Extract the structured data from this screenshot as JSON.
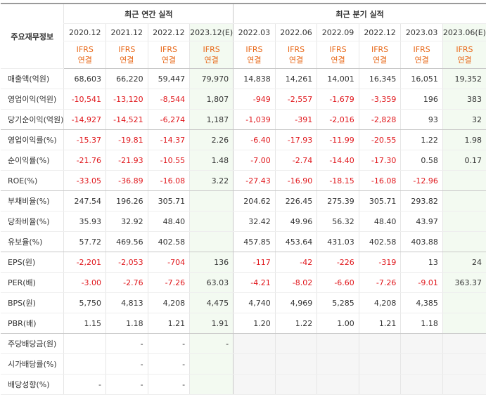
{
  "header": {
    "label": "주요재무정보",
    "groups": [
      {
        "title": "최근 연간 실적",
        "span": 4
      },
      {
        "title": "최근 분기 실적",
        "span": 6
      }
    ]
  },
  "columns": [
    {
      "period": "2020.12",
      "standard": "IFRS",
      "basis": "연결",
      "estimate": false
    },
    {
      "period": "2021.12",
      "standard": "IFRS",
      "basis": "연결",
      "estimate": false
    },
    {
      "period": "2022.12",
      "standard": "IFRS",
      "basis": "연결",
      "estimate": false
    },
    {
      "period": "2023.12(E)",
      "standard": "IFRS",
      "basis": "연결",
      "estimate": true
    },
    {
      "period": "2022.03",
      "standard": "IFRS",
      "basis": "연결",
      "estimate": false
    },
    {
      "period": "2022.06",
      "standard": "IFRS",
      "basis": "연결",
      "estimate": false
    },
    {
      "period": "2022.09",
      "standard": "IFRS",
      "basis": "연결",
      "estimate": false
    },
    {
      "period": "2022.12",
      "standard": "IFRS",
      "basis": "연결",
      "estimate": false
    },
    {
      "period": "2023.03",
      "standard": "IFRS",
      "basis": "연결",
      "estimate": false
    },
    {
      "period": "2023.06(E)",
      "standard": "IFRS",
      "basis": "연결",
      "estimate": true
    }
  ],
  "table": {
    "rows": [
      {
        "label": "매출액(억원)",
        "cells": [
          "68,603",
          "66,220",
          "59,447",
          "79,970",
          "14,838",
          "14,261",
          "14,001",
          "16,345",
          "16,051",
          "19,352"
        ]
      },
      {
        "label": "영업이익(억원)",
        "cells": [
          "-10,541",
          "-13,120",
          "-8,544",
          "1,807",
          "-949",
          "-2,557",
          "-1,679",
          "-3,359",
          "196",
          "383"
        ]
      },
      {
        "label": "당기순이익(억원)",
        "cells": [
          "-14,927",
          "-14,521",
          "-6,274",
          "1,187",
          "-1,039",
          "-391",
          "-2,016",
          "-2,828",
          "93",
          "32"
        ],
        "group_end": true
      },
      {
        "label": "영업이익률(%)",
        "cells": [
          "-15.37",
          "-19.81",
          "-14.37",
          "2.26",
          "-6.40",
          "-17.93",
          "-11.99",
          "-20.55",
          "1.22",
          "1.98"
        ]
      },
      {
        "label": "순이익률(%)",
        "cells": [
          "-21.76",
          "-21.93",
          "-10.55",
          "1.48",
          "-7.00",
          "-2.74",
          "-14.40",
          "-17.30",
          "0.58",
          "0.17"
        ]
      },
      {
        "label": "ROE(%)",
        "cells": [
          "-33.05",
          "-36.89",
          "-16.08",
          "3.22",
          "-27.43",
          "-16.90",
          "-18.15",
          "-16.08",
          "-12.96",
          null
        ],
        "group_end": true
      },
      {
        "label": "부채비율(%)",
        "cells": [
          "247.54",
          "196.26",
          "305.71",
          null,
          "204.62",
          "226.45",
          "275.39",
          "305.71",
          "293.82",
          null
        ]
      },
      {
        "label": "당좌비율(%)",
        "cells": [
          "35.93",
          "32.92",
          "48.40",
          null,
          "32.42",
          "49.96",
          "56.32",
          "48.40",
          "43.97",
          null
        ]
      },
      {
        "label": "유보율(%)",
        "cells": [
          "57.72",
          "469.56",
          "402.58",
          null,
          "457.85",
          "453.64",
          "431.03",
          "402.58",
          "403.88",
          null
        ],
        "group_end": true
      },
      {
        "label": "EPS(원)",
        "cells": [
          "-2,201",
          "-2,053",
          "-704",
          "136",
          "-117",
          "-42",
          "-226",
          "-319",
          "13",
          "24"
        ]
      },
      {
        "label": "PER(배)",
        "cells": [
          "-3.00",
          "-2.76",
          "-7.26",
          "63.03",
          "-4.21",
          "-8.02",
          "-6.60",
          "-7.26",
          "-9.01",
          "363.37"
        ]
      },
      {
        "label": "BPS(원)",
        "cells": [
          "5,750",
          "4,813",
          "4,208",
          "4,475",
          "4,740",
          "4,969",
          "5,285",
          "4,208",
          "4,385",
          null
        ]
      },
      {
        "label": "PBR(배)",
        "cells": [
          "1.15",
          "1.18",
          "1.21",
          "1.91",
          "1.20",
          "1.22",
          "1.00",
          "1.21",
          "1.18",
          null
        ],
        "group_end": true
      },
      {
        "label": "주당배당금(원)",
        "cells": [
          null,
          "-",
          "-",
          "-",
          null,
          null,
          null,
          null,
          null,
          null
        ],
        "quarterly_na": true
      },
      {
        "label": "시가배당률(%)",
        "cells": [
          null,
          "-",
          "-",
          null,
          null,
          null,
          null,
          null,
          null,
          null
        ],
        "quarterly_na": true
      },
      {
        "label": "배당성향(%)",
        "cells": [
          "-",
          "-",
          "-",
          null,
          null,
          null,
          null,
          null,
          null,
          null
        ],
        "quarterly_na": true
      }
    ]
  }
}
